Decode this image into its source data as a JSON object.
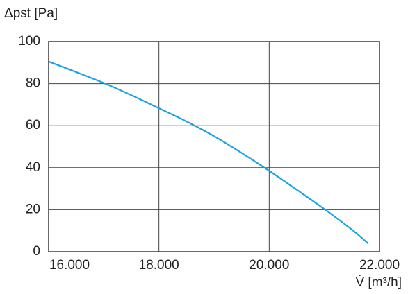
{
  "chart_data": {
    "type": "line",
    "y_label": "Δpst [Pa]",
    "x_label": "V̇ [m³/h]",
    "x": [
      16000,
      16500,
      17000,
      17500,
      18000,
      18500,
      19000,
      19500,
      20000,
      20500,
      21000,
      21500,
      21800
    ],
    "series": [
      {
        "color": "#1ba3e0",
        "values": [
          90.5,
          85.5,
          80.3,
          74.5,
          68.3,
          62,
          55,
          47,
          38.5,
          29.5,
          20.3,
          10.5,
          3.8
        ]
      }
    ],
    "xlim": [
      16000,
      22000
    ],
    "xticks": [
      {
        "value": 16000,
        "label": "16.000"
      },
      {
        "value": 18000,
        "label": "18.000"
      },
      {
        "value": 20000,
        "label": "20.000"
      },
      {
        "value": 22000,
        "label": "22.000"
      }
    ],
    "ylim": [
      0,
      100
    ],
    "yticks": [
      0,
      20,
      40,
      60,
      80,
      100
    ],
    "grid": true
  }
}
